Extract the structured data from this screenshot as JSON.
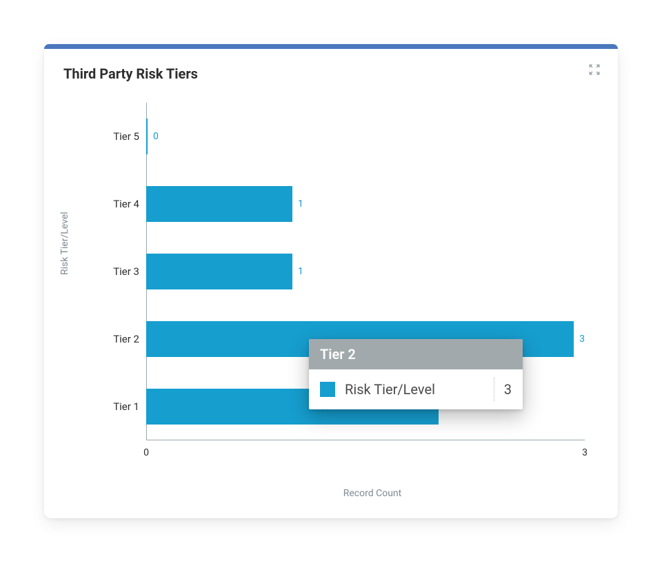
{
  "card": {
    "title": "Third Party Risk Tiers",
    "topbar_color": "#4a77bd",
    "background": "#ffffff"
  },
  "chart": {
    "type": "bar-horizontal",
    "ylabel": "Risk Tier/Level",
    "xlabel": "Record Count",
    "bar_color": "#169ecf",
    "value_label_color": "#169ecf",
    "category_label_color": "#2e2e2e",
    "axis_color": "#9aa7b0",
    "xlim": [
      0,
      3
    ],
    "xticks": [
      {
        "pos": 0,
        "label": "0"
      },
      {
        "pos": 3,
        "label": "3"
      }
    ],
    "bars": [
      {
        "category": "Tier 5",
        "value": 0
      },
      {
        "category": "Tier 4",
        "value": 1
      },
      {
        "category": "Tier 3",
        "value": 1
      },
      {
        "category": "Tier 2",
        "value": 3
      },
      {
        "category": "Tier 1",
        "value": 2
      }
    ],
    "label_fontsize": 14,
    "title_fontsize": 20
  },
  "tooltip": {
    "header": "Tier 2",
    "header_bg": "#a2a9ad",
    "swatch_color": "#169ecf",
    "label": "Risk Tier/Level",
    "value": "3"
  }
}
